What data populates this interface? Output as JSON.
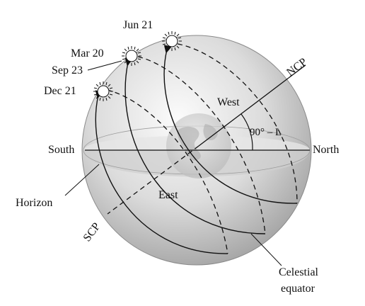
{
  "labels": {
    "jun21": "Jun 21",
    "mar20": "Mar 20",
    "sep23": "Sep 23",
    "dec21": "Dec 21",
    "ncp": "NCP",
    "scp": "SCP",
    "west": "West",
    "east": "East",
    "south": "South",
    "north": "North",
    "horizon": "Horizon",
    "angle": "90° – L",
    "celestial_1": "Celestial",
    "celestial_2": "equator"
  },
  "colors": {
    "sphere_light": "#f7f7f7",
    "sphere_dark": "#9a9a9a",
    "horizon_fill": "#d9d9d9",
    "line": "#111111"
  },
  "icons": [
    "sun-icon"
  ]
}
